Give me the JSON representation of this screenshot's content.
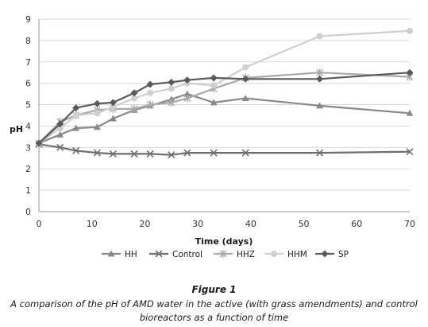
{
  "chart_data": {
    "type": "line",
    "title": "",
    "xlabel": "Time (days)",
    "ylabel": "pH",
    "xlim": [
      0,
      70
    ],
    "ylim": [
      0,
      9
    ],
    "xticks": [
      0,
      10,
      20,
      30,
      40,
      50,
      60,
      70
    ],
    "yticks": [
      0,
      1,
      2,
      3,
      4,
      5,
      6,
      7,
      8,
      9
    ],
    "grid": "horizontal",
    "legend": "bottom",
    "series": [
      {
        "name": "HH",
        "marker": "triangle",
        "color": "#8a8a8a",
        "x": [
          0,
          4,
          7,
          11,
          14,
          18,
          21,
          25,
          28,
          33,
          39,
          53,
          70
        ],
        "y": [
          3.2,
          3.6,
          3.9,
          3.95,
          4.35,
          4.75,
          4.95,
          5.25,
          5.5,
          5.1,
          5.3,
          4.95,
          4.6
        ]
      },
      {
        "name": "Control",
        "marker": "x",
        "color": "#6e6e6e",
        "x": [
          0,
          4,
          7,
          11,
          14,
          18,
          21,
          25,
          28,
          33,
          39,
          53,
          70
        ],
        "y": [
          3.15,
          3.0,
          2.85,
          2.75,
          2.7,
          2.7,
          2.7,
          2.65,
          2.75,
          2.75,
          2.75,
          2.75,
          2.8
        ]
      },
      {
        "name": "HHZ",
        "marker": "asterisk",
        "color": "#a8a8a8",
        "x": [
          0,
          4,
          7,
          11,
          14,
          18,
          21,
          25,
          28,
          33,
          39,
          53,
          70
        ],
        "y": [
          3.2,
          4.2,
          4.5,
          4.75,
          4.8,
          4.8,
          5.0,
          5.1,
          5.3,
          5.75,
          6.25,
          6.5,
          6.3
        ]
      },
      {
        "name": "HHM",
        "marker": "circle",
        "color": "#cfcfcf",
        "x": [
          0,
          4,
          7,
          11,
          14,
          18,
          21,
          25,
          28,
          33,
          39,
          53,
          70
        ],
        "y": [
          3.2,
          3.9,
          4.5,
          4.6,
          4.9,
          5.3,
          5.55,
          5.75,
          6.0,
          5.9,
          6.75,
          8.2,
          8.45
        ]
      },
      {
        "name": "SP",
        "marker": "diamond",
        "color": "#5a5a5a",
        "x": [
          0,
          4,
          7,
          11,
          14,
          18,
          21,
          25,
          28,
          33,
          39,
          53,
          70
        ],
        "y": [
          3.2,
          4.1,
          4.85,
          5.05,
          5.1,
          5.55,
          5.95,
          6.05,
          6.15,
          6.25,
          6.2,
          6.2,
          6.5
        ]
      }
    ]
  },
  "caption": {
    "title": "Figure 1",
    "text": "A comparison of the pH of AMD water in the active (with grass amendments) and control bioreactors as a function of time"
  }
}
